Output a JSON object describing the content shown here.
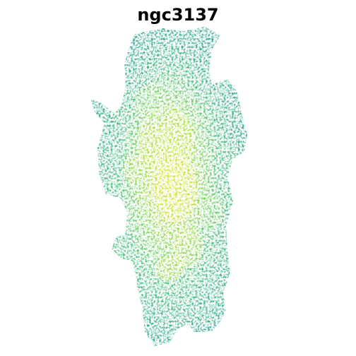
{
  "title": "ngc3137",
  "colors": {
    "background": "#ffffff",
    "low": "#1e9c89",
    "mid_low": "#3fbc73",
    "mid": "#7ad151",
    "high": "#bddf26",
    "peak": "#e2e418"
  }
}
